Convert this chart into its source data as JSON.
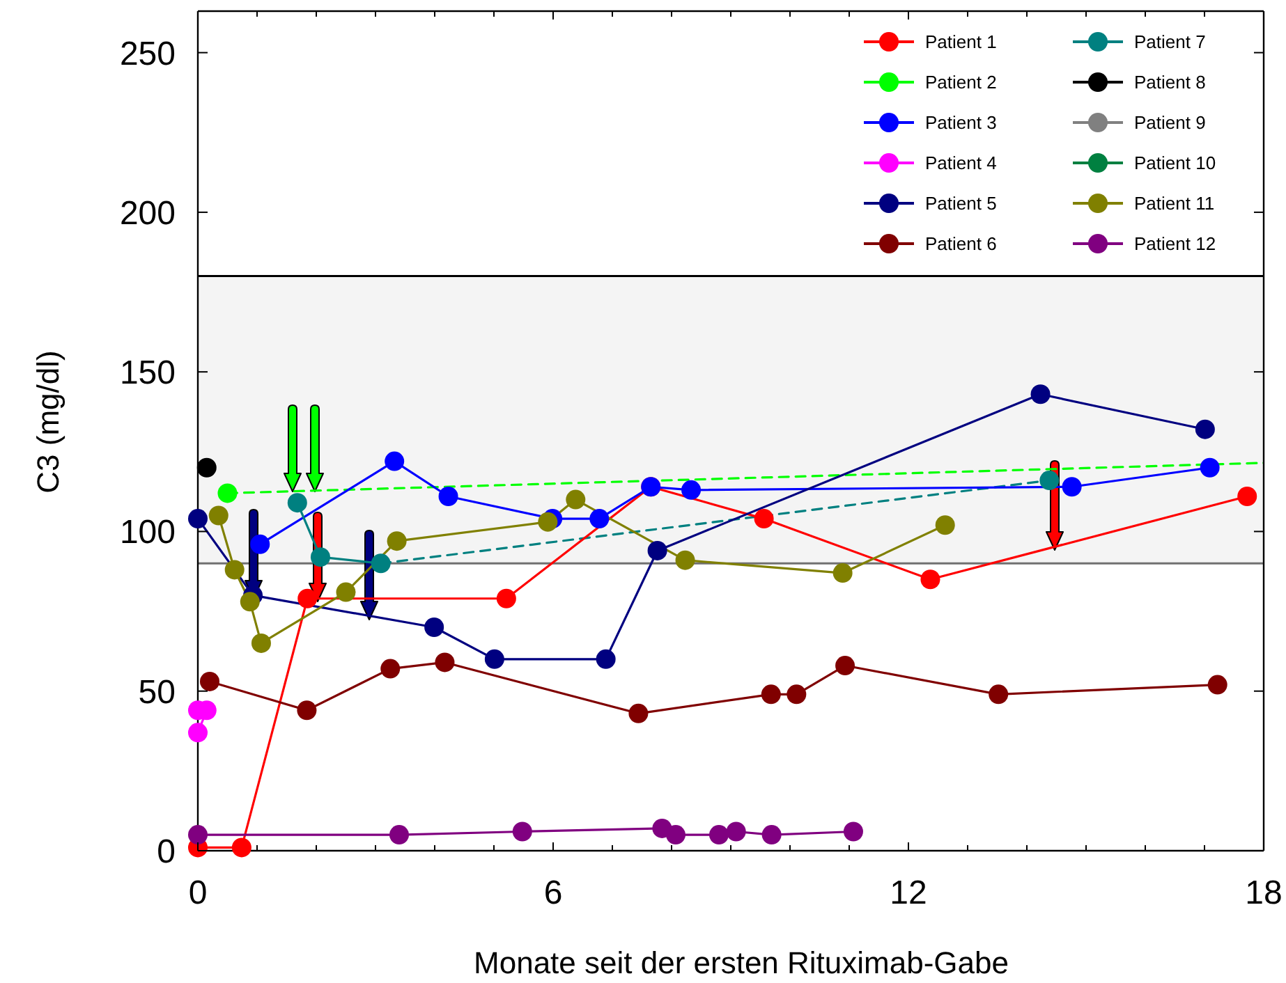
{
  "chart_data": {
    "type": "line",
    "xlabel": "Monate seit der ersten Rituximab-Gabe",
    "ylabel": "C3 (mg/dl)",
    "xlim": [
      0,
      18
    ],
    "ylim": [
      0,
      263
    ],
    "xticks": [
      0,
      {
        "value": 1,
        "label": null
      },
      {
        "value": 2,
        "label": null
      },
      {
        "value": 3,
        "label": null
      },
      {
        "value": 4,
        "label": null
      },
      {
        "value": 5,
        "label": null
      },
      6,
      {
        "value": 7,
        "label": null
      },
      {
        "value": 8,
        "label": null
      },
      {
        "value": 9,
        "label": null
      },
      {
        "value": 10,
        "label": null
      },
      {
        "value": 11,
        "label": null
      },
      12,
      {
        "value": 13,
        "label": null
      },
      {
        "value": 14,
        "label": null
      },
      {
        "value": 15,
        "label": null
      },
      {
        "value": 16,
        "label": null
      },
      {
        "value": 17,
        "label": null
      },
      18
    ],
    "yticks": [
      0,
      50,
      100,
      150,
      200,
      250
    ],
    "legend": "top right",
    "grid": false,
    "bands": [
      {
        "axis": "y",
        "from": 90,
        "to": 180,
        "color": "#f4f4f4"
      }
    ],
    "ref_lines": [
      {
        "axis": "y",
        "value": 90,
        "color": "#707070"
      },
      {
        "axis": "y",
        "value": 180,
        "color": "#000000"
      }
    ],
    "series": [
      {
        "color": "#00ff00",
        "x": [
          0.5,
          18
        ],
        "values": [
          112,
          121.5
        ],
        "line_style": "dashed"
      },
      {
        "color": "#008080",
        "x": [
          3.09,
          14.38
        ],
        "values": [
          90,
          116
        ],
        "line_style": "dashed"
      },
      {
        "name": "Patient 1",
        "color": "#ff0000",
        "marker": "circle",
        "x": [
          0,
          0.74,
          1.85,
          5.21,
          7.65,
          9.56,
          12.37,
          17.72
        ],
        "values": [
          1,
          1,
          79,
          79,
          114,
          104,
          85,
          111
        ]
      },
      {
        "name": "Patient 2",
        "color": "#00ff00",
        "marker": "circle",
        "x": [
          0.5
        ],
        "values": [
          112
        ]
      },
      {
        "name": "Patient 3",
        "color": "#0000ff",
        "marker": "circle",
        "x": [
          1.05,
          3.32,
          4.23,
          5.99,
          6.78,
          7.65,
          8.33,
          14.76,
          17.09
        ],
        "values": [
          96,
          122,
          111,
          104,
          104,
          114,
          113,
          114,
          120
        ]
      },
      {
        "name": "Patient 4",
        "color": "#ff00ff",
        "marker": "circle",
        "x": [
          0,
          0.15,
          0
        ],
        "values": [
          44,
          44,
          37
        ]
      },
      {
        "name": "Patient 5",
        "color": "#000080",
        "marker": "circle",
        "x": [
          0,
          0.93,
          3.99,
          5.01,
          6.89,
          7.76,
          14.23,
          17.01
        ],
        "values": [
          104,
          80,
          70,
          60,
          60,
          94,
          143,
          132
        ]
      },
      {
        "name": "Patient 6",
        "color": "#800000",
        "marker": "circle",
        "x": [
          0.2,
          1.84,
          3.25,
          4.17,
          7.44,
          9.68,
          10.11,
          10.93,
          13.52,
          17.22
        ],
        "values": [
          53,
          44,
          57,
          59,
          43,
          49,
          49,
          58,
          49,
          52
        ]
      },
      {
        "name": "Patient 7",
        "color": "#008080",
        "marker": "circle",
        "x": [
          1.68,
          2.07,
          3.09
        ],
        "values": [
          109,
          92,
          90
        ]
      },
      {
        "color": "#008080",
        "type": "scatter",
        "marker": "circle",
        "x": [
          14.38
        ],
        "values": [
          116
        ]
      },
      {
        "name": "Patient 8",
        "color": "#000000",
        "marker": "circle",
        "x": [
          0.15
        ],
        "values": [
          120
        ]
      },
      {
        "name": "Patient 9",
        "color": "#808080",
        "marker": "circle"
      },
      {
        "name": "Patient 10",
        "color": "#008040",
        "marker": "circle"
      },
      {
        "name": "Patient 11",
        "color": "#808000",
        "marker": "circle",
        "x": [
          0.35,
          0.62,
          0.88,
          1.07,
          2.5,
          3.36,
          5.91,
          6.38,
          8.23,
          10.89,
          12.62
        ],
        "values": [
          105,
          88,
          78,
          65,
          81,
          97,
          103,
          110,
          91,
          87,
          102
        ]
      },
      {
        "name": "Patient 12",
        "color": "#800080",
        "marker": "circle",
        "x": [
          0,
          3.4,
          5.48,
          7.84,
          8.07,
          8.8,
          9.09,
          9.69,
          11.07
        ],
        "values": [
          5,
          5,
          6,
          7,
          5,
          5,
          6,
          5,
          6
        ]
      }
    ]
  }
}
